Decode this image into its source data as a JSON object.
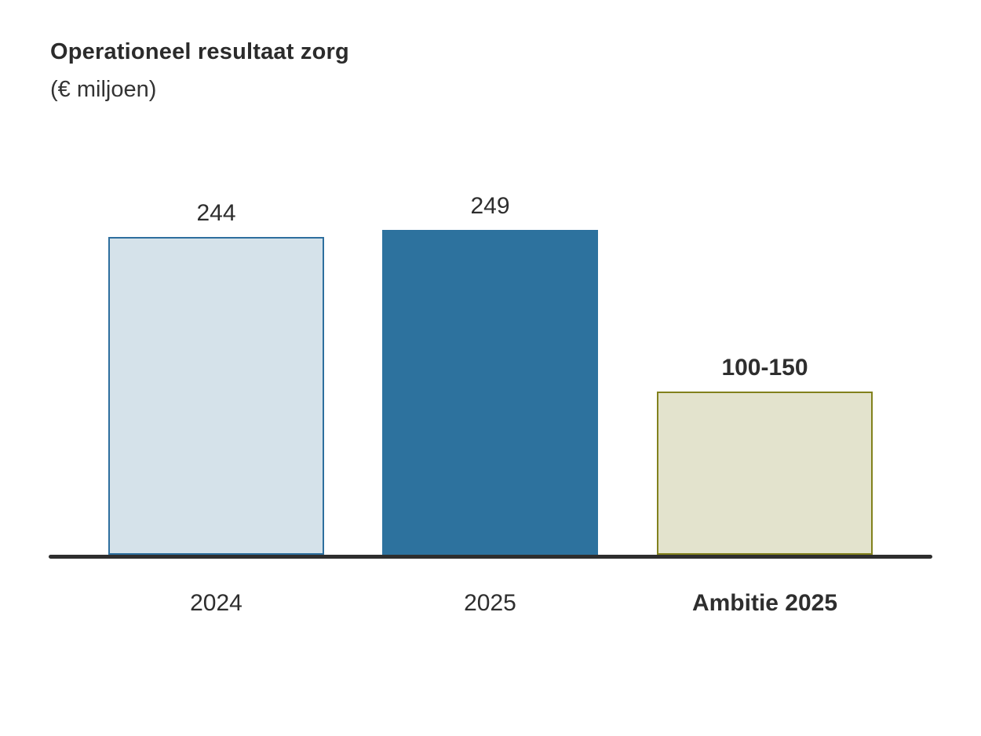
{
  "header": {
    "title": "Operationeel resultaat zorg",
    "subtitle": "(€ miljoen)"
  },
  "colors": {
    "background": "#ffffff",
    "text": "#2e2e2e",
    "axis_line": "#2e2e2e",
    "bar_2024_fill": "#d5e2ea",
    "bar_2024_border": "#2e6f9e",
    "bar_2025_fill": "#2d729e",
    "bar_ambitie_fill": "#e3e3cd",
    "bar_ambitie_border": "#82811d"
  },
  "chart_data": {
    "type": "bar",
    "title": "Operationeel resultaat zorg",
    "subtitle": "(€ miljoen)",
    "ylabel": "€ miljoen",
    "ylim": [
      0,
      260
    ],
    "grid": false,
    "legend": "none",
    "categories": [
      "2024",
      "2025",
      "Ambitie 2025"
    ],
    "values": [
      244,
      249,
      125
    ],
    "bars": [
      {
        "category": "2024",
        "value": 244,
        "label": "244",
        "label_bold": false,
        "category_bold": false,
        "fill": "#d5e2ea",
        "border": "#2e6f9e",
        "border_width": 2
      },
      {
        "category": "2025",
        "value": 249,
        "label": "249",
        "label_bold": false,
        "category_bold": false,
        "fill": "#2d729e",
        "border": "#2d729e",
        "border_width": 0
      },
      {
        "category": "Ambitie 2025",
        "value": 125,
        "value_min": 100,
        "value_max": 150,
        "label": "100-150",
        "label_bold": true,
        "category_bold": true,
        "fill": "#e3e3cd",
        "border": "#82811d",
        "border_width": 2
      }
    ]
  }
}
